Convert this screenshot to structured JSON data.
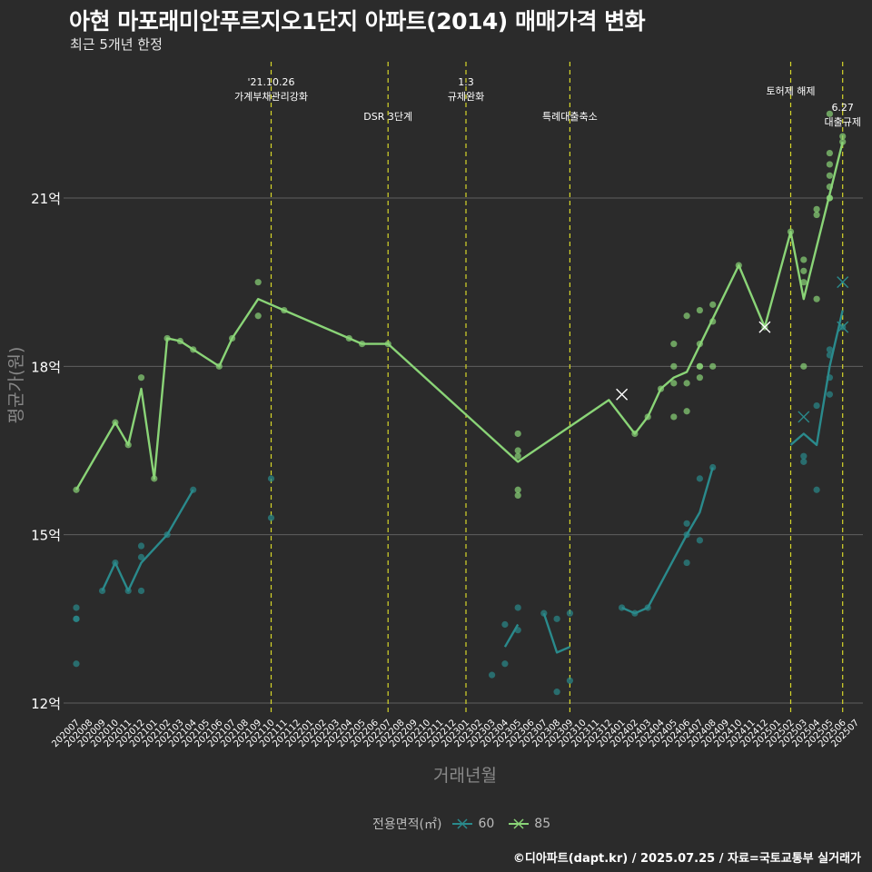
{
  "title": "아현 마포래미안푸르지오1단지 아파트(2014) 매매가격 변화",
  "subtitle": "최근 5개년 한정",
  "caption": "©디아파트(dapt.kr) / 2025.07.25 / 자료=국토교통부 실거래가",
  "legend": {
    "title": "전용면적(㎡)",
    "items": [
      {
        "label": "60",
        "color": "#2a8a8c"
      },
      {
        "label": "85",
        "color": "#8ad477"
      }
    ]
  },
  "chart_data": {
    "type": "line",
    "xlabel": "거래년월",
    "ylabel": "평균가(원)",
    "ylim": [
      11.5,
      22.5
    ],
    "y_ticks": [
      {
        "value": 12,
        "label": "12억"
      },
      {
        "value": 15,
        "label": "15억"
      },
      {
        "value": 18,
        "label": "18억"
      },
      {
        "value": 21,
        "label": "21억"
      }
    ],
    "x_categories": [
      "202007",
      "202008",
      "202009",
      "202010",
      "202011",
      "202012",
      "202101",
      "202102",
      "202103",
      "202104",
      "202105",
      "202106",
      "202107",
      "202108",
      "202109",
      "202110",
      "202111",
      "202112",
      "202201",
      "202202",
      "202203",
      "202204",
      "202205",
      "202206",
      "202207",
      "202208",
      "202209",
      "202210",
      "202211",
      "202212",
      "202301",
      "202302",
      "202303",
      "202304",
      "202305",
      "202306",
      "202307",
      "202308",
      "202309",
      "202310",
      "202311",
      "202312",
      "202401",
      "202402",
      "202403",
      "202404",
      "202405",
      "202406",
      "202407",
      "202408",
      "202409",
      "202410",
      "202411",
      "202412",
      "202501",
      "202502",
      "202503",
      "202504",
      "202505",
      "202506",
      "202507"
    ],
    "events": [
      {
        "x": "202110",
        "lines": [
          "'21.10.26",
          "가계부채관리강화"
        ],
        "row": 0
      },
      {
        "x": "202207",
        "lines": [
          "DSR 3단계"
        ],
        "row": 1
      },
      {
        "x": "202301",
        "lines": [
          "1.3",
          "규제완화"
        ],
        "row": 0
      },
      {
        "x": "202309",
        "lines": [
          "특례대출축소"
        ],
        "row": 1
      },
      {
        "x": "202502",
        "lines": [
          "토허제 해제"
        ],
        "row": 0
      },
      {
        "x": "202506",
        "lines": [
          "6.27",
          "대출규제"
        ],
        "row": 1
      }
    ],
    "series": [
      {
        "name": "60",
        "color": "#2a8a8c",
        "line": [
          [
            [
              "202009",
              14.0
            ],
            [
              "202010",
              14.5
            ],
            [
              "202011",
              14.0
            ],
            [
              "202012",
              14.5
            ],
            [
              "202102",
              15.0
            ],
            [
              "202104",
              15.8
            ]
          ],
          [
            [
              "202304",
              13.0
            ],
            [
              "202305",
              13.4
            ]
          ],
          [
            [
              "202307",
              13.6
            ],
            [
              "202308",
              12.9
            ],
            [
              "202309",
              13.0
            ]
          ],
          [
            [
              "202401",
              13.7
            ],
            [
              "202402",
              13.6
            ],
            [
              "202403",
              13.7
            ],
            [
              "202406",
              15.0
            ],
            [
              "202407",
              15.4
            ],
            [
              "202408",
              16.2
            ]
          ],
          [
            [
              "202502",
              16.6
            ],
            [
              "202503",
              16.8
            ],
            [
              "202504",
              16.6
            ],
            [
              "202505",
              18.0
            ],
            [
              "202506",
              19.0
            ]
          ]
        ],
        "points": [
          [
            "202007",
            13.7
          ],
          [
            "202007",
            13.5
          ],
          [
            "202007",
            13.5
          ],
          [
            "202007",
            12.7
          ],
          [
            "202009",
            14.0
          ],
          [
            "202010",
            14.5
          ],
          [
            "202011",
            14.0
          ],
          [
            "202012",
            14.8
          ],
          [
            "202012",
            14.6
          ],
          [
            "202012",
            14.0
          ],
          [
            "202102",
            15.0
          ],
          [
            "202104",
            15.8
          ],
          [
            "202110",
            16.0
          ],
          [
            "202110",
            15.3
          ],
          [
            "202303",
            12.5
          ],
          [
            "202304",
            13.4
          ],
          [
            "202304",
            12.7
          ],
          [
            "202305",
            13.7
          ],
          [
            "202305",
            13.3
          ],
          [
            "202307",
            13.6
          ],
          [
            "202308",
            13.5
          ],
          [
            "202308",
            12.2
          ],
          [
            "202309",
            13.6
          ],
          [
            "202309",
            12.4
          ],
          [
            "202401",
            13.7
          ],
          [
            "202402",
            13.6
          ],
          [
            "202403",
            13.7
          ],
          [
            "202406",
            15.2
          ],
          [
            "202406",
            15.0
          ],
          [
            "202406",
            14.5
          ],
          [
            "202407",
            16.0
          ],
          [
            "202407",
            14.9
          ],
          [
            "202408",
            16.2
          ],
          [
            "202503",
            16.3
          ],
          [
            "202503",
            16.4
          ],
          [
            "202504",
            17.3
          ],
          [
            "202504",
            15.8
          ],
          [
            "202505",
            18.3
          ],
          [
            "202505",
            18.2
          ],
          [
            "202505",
            17.8
          ],
          [
            "202505",
            17.5
          ],
          [
            "202506",
            18.7
          ]
        ],
        "cancelled": [
          [
            "202503",
            17.1
          ],
          [
            "202506",
            19.5
          ],
          [
            "202506",
            18.7
          ]
        ]
      },
      {
        "name": "85",
        "color": "#8ad477",
        "line": [
          [
            [
              "202007",
              15.8
            ],
            [
              "202010",
              17.0
            ],
            [
              "202011",
              16.6
            ],
            [
              "202012",
              17.6
            ],
            [
              "202101",
              16.0
            ],
            [
              "202102",
              18.5
            ],
            [
              "202103",
              18.45
            ],
            [
              "202104",
              18.3
            ],
            [
              "202106",
              18.0
            ],
            [
              "202107",
              18.5
            ],
            [
              "202109",
              19.2
            ],
            [
              "202111",
              19.0
            ],
            [
              "202204",
              18.5
            ],
            [
              "202205",
              18.4
            ],
            [
              "202207",
              18.4
            ],
            [
              "202305",
              16.3
            ],
            [
              "202312",
              17.4
            ],
            [
              "202402",
              16.8
            ],
            [
              "202403",
              17.1
            ],
            [
              "202404",
              17.6
            ],
            [
              "202405",
              17.8
            ],
            [
              "202406",
              17.9
            ],
            [
              "202410",
              19.8
            ],
            [
              "202412",
              18.7
            ],
            [
              "202502",
              20.4
            ],
            [
              "202503",
              19.2
            ],
            [
              "202506",
              22.0
            ]
          ]
        ],
        "points": [
          [
            "202007",
            15.8
          ],
          [
            "202010",
            17.0
          ],
          [
            "202011",
            16.6
          ],
          [
            "202012",
            17.8
          ],
          [
            "202101",
            16.0
          ],
          [
            "202102",
            18.5
          ],
          [
            "202103",
            18.45
          ],
          [
            "202104",
            18.3
          ],
          [
            "202106",
            18.0
          ],
          [
            "202107",
            18.5
          ],
          [
            "202109",
            19.5
          ],
          [
            "202109",
            18.9
          ],
          [
            "202111",
            19.0
          ],
          [
            "202204",
            18.5
          ],
          [
            "202205",
            18.4
          ],
          [
            "202207",
            18.4
          ],
          [
            "202305",
            16.8
          ],
          [
            "202305",
            16.5
          ],
          [
            "202305",
            16.4
          ],
          [
            "202305",
            15.8
          ],
          [
            "202305",
            15.7
          ],
          [
            "202402",
            16.8
          ],
          [
            "202403",
            17.1
          ],
          [
            "202404",
            17.6
          ],
          [
            "202405",
            18.4
          ],
          [
            "202405",
            18.0
          ],
          [
            "202405",
            17.7
          ],
          [
            "202405",
            17.1
          ],
          [
            "202406",
            18.9
          ],
          [
            "202406",
            17.7
          ],
          [
            "202406",
            17.2
          ],
          [
            "202407",
            19.0
          ],
          [
            "202407",
            18.4
          ],
          [
            "202407",
            18.0
          ],
          [
            "202407",
            18.0
          ],
          [
            "202407",
            17.8
          ],
          [
            "202408",
            19.1
          ],
          [
            "202408",
            18.8
          ],
          [
            "202408",
            18.0
          ],
          [
            "202410",
            19.8
          ],
          [
            "202412",
            18.7
          ],
          [
            "202502",
            20.4
          ],
          [
            "202503",
            19.9
          ],
          [
            "202503",
            19.7
          ],
          [
            "202503",
            19.5
          ],
          [
            "202503",
            18.0
          ],
          [
            "202504",
            20.8
          ],
          [
            "202504",
            20.7
          ],
          [
            "202504",
            19.2
          ],
          [
            "202505",
            22.5
          ],
          [
            "202505",
            21.8
          ],
          [
            "202505",
            21.6
          ],
          [
            "202505",
            21.4
          ],
          [
            "202505",
            21.2
          ],
          [
            "202505",
            21.0
          ],
          [
            "202505",
            21.0
          ],
          [
            "202506",
            22.0
          ],
          [
            "202506",
            22.1
          ]
        ],
        "cancelled": [
          [
            "202401",
            17.5
          ],
          [
            "202412",
            18.7
          ]
        ]
      }
    ]
  }
}
